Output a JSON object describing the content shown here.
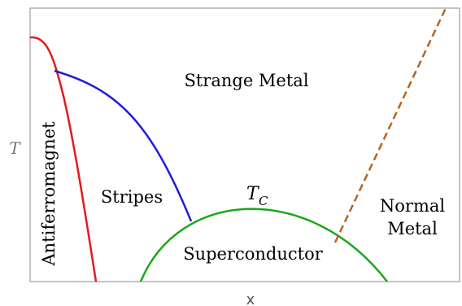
{
  "axes": {
    "x_label": "x",
    "y_label": "T"
  },
  "regions": {
    "strange_metal": "Strange Metal",
    "antiferromagnet": "Antiferromagnet",
    "stripes": "Stripes",
    "superconductor": "Superconductor",
    "normal_metal_line1": "Normal",
    "normal_metal_line2": "Metal"
  },
  "curve_labels": {
    "tc_main": "T",
    "tc_sub": "C"
  },
  "colors": {
    "antiferromagnet_curve": "#e31a1c",
    "stripes_curve": "#1f1fd6",
    "superconductor_dome": "#1aa81a",
    "crossover_line": "#b5651d",
    "frame": "#888888",
    "axis_label": "#555555"
  }
}
